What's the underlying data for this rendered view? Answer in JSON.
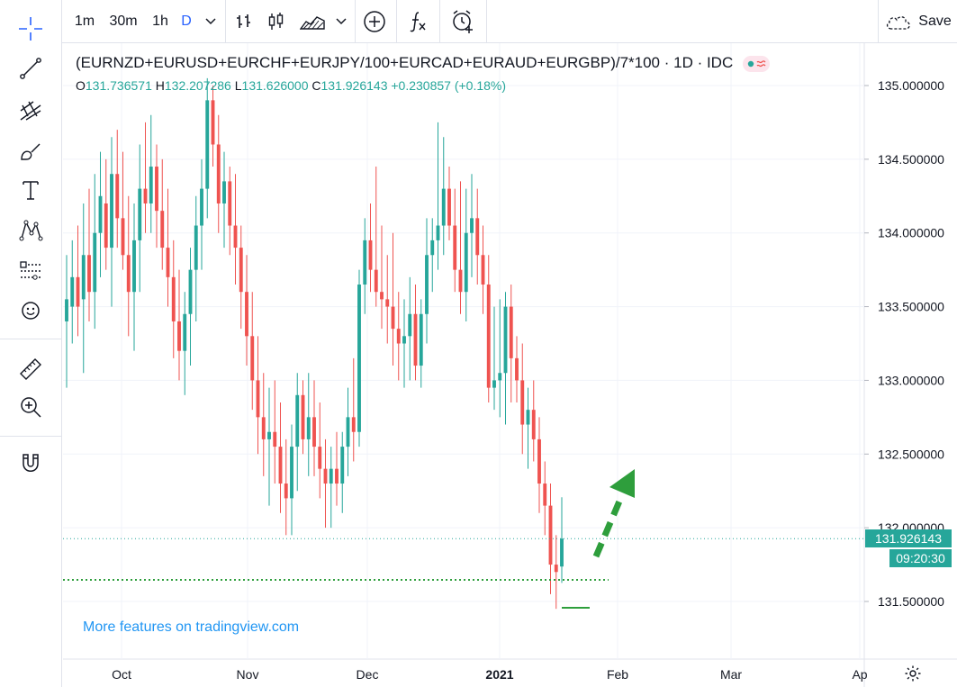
{
  "toolbar": {
    "intervals": [
      "1m",
      "30m",
      "1h",
      "D"
    ],
    "save_label": "Save"
  },
  "legend": {
    "title": "(EURNZD+EURUSD+EURCHF+EURJPY/100+EURCAD+EURAUD+EURGBP)/7*100 · 1D · IDC",
    "o_label": "O",
    "o_value": "131.736571",
    "h_label": "H",
    "h_value": "132.207286",
    "l_label": "L",
    "l_value": "131.626000",
    "c_label": "C",
    "c_value": "131.926143",
    "change": "+0.230857 (+0.18%)"
  },
  "price_tag": {
    "last_price": "131.926143",
    "countdown": "09:20:30"
  },
  "watermark": "More features on tradingview.com",
  "colors": {
    "up": "#26a69a",
    "down": "#ef5350",
    "arrow": "#2e9e3c",
    "accent": "#2962ff"
  },
  "icons": [
    "crosshair-icon",
    "trend-line-icon",
    "pitchfork-icon",
    "brush-icon",
    "text-icon",
    "pattern-icon",
    "forecast-icon",
    "emoji-icon",
    "ruler-icon",
    "zoom-in-icon",
    "magnet-icon",
    "settings-icon",
    "cloud-icon",
    "indicators-icon",
    "alert-icon",
    "compare-icon"
  ],
  "chart_data": {
    "type": "candlestick",
    "title": "(EURNZD+EURUSD+EURCHF+EURJPY/100+EURCAD+EURAUD+EURGBP)/7*100 · 1D · IDC",
    "y_ticks": [
      "135.000000",
      "134.500000",
      "134.000000",
      "133.500000",
      "133.000000",
      "132.500000",
      "132.000000",
      "131.500000"
    ],
    "ylim": [
      131.1,
      135.25
    ],
    "x_ticks": [
      "Oct",
      "Nov",
      "Dec",
      "2021",
      "Feb",
      "Mar",
      "Ap"
    ],
    "grid": true,
    "last_close": 131.926143,
    "candles": [
      {
        "o": 133.4,
        "h": 133.85,
        "l": 132.95,
        "c": 133.55
      },
      {
        "o": 133.5,
        "h": 133.95,
        "l": 133.25,
        "c": 133.7
      },
      {
        "o": 133.7,
        "h": 134.05,
        "l": 133.3,
        "c": 133.5
      },
      {
        "o": 133.55,
        "h": 134.2,
        "l": 133.05,
        "c": 133.85
      },
      {
        "o": 133.85,
        "h": 134.3,
        "l": 133.4,
        "c": 133.6
      },
      {
        "o": 133.6,
        "h": 134.4,
        "l": 133.35,
        "c": 134.0
      },
      {
        "o": 134.0,
        "h": 134.55,
        "l": 133.7,
        "c": 134.25
      },
      {
        "o": 134.2,
        "h": 134.5,
        "l": 133.75,
        "c": 133.9
      },
      {
        "o": 133.9,
        "h": 134.65,
        "l": 133.5,
        "c": 134.4
      },
      {
        "o": 134.4,
        "h": 134.7,
        "l": 133.9,
        "c": 134.1
      },
      {
        "o": 134.1,
        "h": 134.55,
        "l": 133.75,
        "c": 133.85
      },
      {
        "o": 133.85,
        "h": 134.25,
        "l": 133.3,
        "c": 133.6
      },
      {
        "o": 133.6,
        "h": 134.2,
        "l": 133.2,
        "c": 133.95
      },
      {
        "o": 133.95,
        "h": 134.6,
        "l": 133.6,
        "c": 134.3
      },
      {
        "o": 134.3,
        "h": 134.75,
        "l": 134.0,
        "c": 134.2
      },
      {
        "o": 134.2,
        "h": 134.8,
        "l": 134.0,
        "c": 134.45
      },
      {
        "o": 134.45,
        "h": 134.6,
        "l": 133.9,
        "c": 134.15
      },
      {
        "o": 134.15,
        "h": 134.5,
        "l": 133.75,
        "c": 133.9
      },
      {
        "o": 133.9,
        "h": 134.3,
        "l": 133.5,
        "c": 133.7
      },
      {
        "o": 133.7,
        "h": 133.95,
        "l": 133.15,
        "c": 133.4
      },
      {
        "o": 133.4,
        "h": 133.75,
        "l": 133.0,
        "c": 133.2
      },
      {
        "o": 133.2,
        "h": 133.6,
        "l": 132.9,
        "c": 133.45
      },
      {
        "o": 133.45,
        "h": 133.9,
        "l": 133.1,
        "c": 133.75
      },
      {
        "o": 133.75,
        "h": 134.25,
        "l": 133.4,
        "c": 134.05
      },
      {
        "o": 134.05,
        "h": 134.5,
        "l": 133.75,
        "c": 134.3
      },
      {
        "o": 134.3,
        "h": 135.05,
        "l": 134.1,
        "c": 134.9
      },
      {
        "o": 134.9,
        "h": 135.0,
        "l": 134.45,
        "c": 134.6
      },
      {
        "o": 134.6,
        "h": 134.8,
        "l": 134.0,
        "c": 134.2
      },
      {
        "o": 134.2,
        "h": 134.55,
        "l": 133.9,
        "c": 134.35
      },
      {
        "o": 134.35,
        "h": 134.45,
        "l": 133.85,
        "c": 134.05
      },
      {
        "o": 134.05,
        "h": 134.4,
        "l": 133.65,
        "c": 133.9
      },
      {
        "o": 133.9,
        "h": 134.05,
        "l": 133.35,
        "c": 133.6
      },
      {
        "o": 133.6,
        "h": 133.85,
        "l": 133.1,
        "c": 133.3
      },
      {
        "o": 133.3,
        "h": 133.6,
        "l": 132.8,
        "c": 133.0
      },
      {
        "o": 133.0,
        "h": 133.3,
        "l": 132.5,
        "c": 132.75
      },
      {
        "o": 132.75,
        "h": 133.05,
        "l": 132.35,
        "c": 132.6
      },
      {
        "o": 132.6,
        "h": 132.95,
        "l": 132.15,
        "c": 132.65
      },
      {
        "o": 132.65,
        "h": 133.0,
        "l": 132.3,
        "c": 132.55
      },
      {
        "o": 132.55,
        "h": 132.85,
        "l": 132.1,
        "c": 132.3
      },
      {
        "o": 132.3,
        "h": 132.6,
        "l": 131.95,
        "c": 132.2
      },
      {
        "o": 132.2,
        "h": 132.7,
        "l": 131.95,
        "c": 132.55
      },
      {
        "o": 132.55,
        "h": 133.05,
        "l": 132.25,
        "c": 132.9
      },
      {
        "o": 132.9,
        "h": 133.0,
        "l": 132.5,
        "c": 132.6
      },
      {
        "o": 132.6,
        "h": 133.05,
        "l": 132.35,
        "c": 132.75
      },
      {
        "o": 132.75,
        "h": 133.0,
        "l": 132.35,
        "c": 132.55
      },
      {
        "o": 132.55,
        "h": 132.85,
        "l": 132.2,
        "c": 132.4
      },
      {
        "o": 132.4,
        "h": 132.6,
        "l": 132.0,
        "c": 132.3
      },
      {
        "o": 132.3,
        "h": 132.55,
        "l": 132.0,
        "c": 132.4
      },
      {
        "o": 132.4,
        "h": 132.65,
        "l": 132.15,
        "c": 132.3
      },
      {
        "o": 132.3,
        "h": 132.65,
        "l": 132.1,
        "c": 132.55
      },
      {
        "o": 132.55,
        "h": 132.95,
        "l": 132.35,
        "c": 132.75
      },
      {
        "o": 132.75,
        "h": 133.15,
        "l": 132.45,
        "c": 132.65
      },
      {
        "o": 132.65,
        "h": 133.75,
        "l": 132.55,
        "c": 133.65
      },
      {
        "o": 133.65,
        "h": 134.1,
        "l": 133.45,
        "c": 133.95
      },
      {
        "o": 133.95,
        "h": 134.2,
        "l": 133.6,
        "c": 133.75
      },
      {
        "o": 133.75,
        "h": 134.45,
        "l": 133.5,
        "c": 133.6
      },
      {
        "o": 133.6,
        "h": 134.05,
        "l": 133.35,
        "c": 133.55
      },
      {
        "o": 133.55,
        "h": 133.85,
        "l": 133.25,
        "c": 133.5
      },
      {
        "o": 133.5,
        "h": 134.0,
        "l": 133.1,
        "c": 133.35
      },
      {
        "o": 133.35,
        "h": 133.6,
        "l": 133.0,
        "c": 133.25
      },
      {
        "o": 133.25,
        "h": 133.55,
        "l": 132.95,
        "c": 133.3
      },
      {
        "o": 133.3,
        "h": 133.7,
        "l": 133.0,
        "c": 133.45
      },
      {
        "o": 133.45,
        "h": 133.65,
        "l": 133.0,
        "c": 133.1
      },
      {
        "o": 133.1,
        "h": 133.55,
        "l": 132.95,
        "c": 133.45
      },
      {
        "o": 133.45,
        "h": 134.1,
        "l": 133.25,
        "c": 133.85
      },
      {
        "o": 133.85,
        "h": 134.1,
        "l": 133.6,
        "c": 133.95
      },
      {
        "o": 133.95,
        "h": 134.75,
        "l": 133.75,
        "c": 134.05
      },
      {
        "o": 134.05,
        "h": 134.65,
        "l": 133.85,
        "c": 134.3
      },
      {
        "o": 134.3,
        "h": 134.45,
        "l": 133.95,
        "c": 134.05
      },
      {
        "o": 134.05,
        "h": 134.3,
        "l": 133.6,
        "c": 133.75
      },
      {
        "o": 133.75,
        "h": 134.35,
        "l": 133.45,
        "c": 133.6
      },
      {
        "o": 133.6,
        "h": 134.3,
        "l": 133.4,
        "c": 134.0
      },
      {
        "o": 134.0,
        "h": 134.4,
        "l": 133.7,
        "c": 134.1
      },
      {
        "o": 134.1,
        "h": 134.3,
        "l": 133.65,
        "c": 133.85
      },
      {
        "o": 133.85,
        "h": 134.05,
        "l": 133.45,
        "c": 133.65
      },
      {
        "o": 133.65,
        "h": 133.85,
        "l": 132.85,
        "c": 132.95
      },
      {
        "o": 132.95,
        "h": 133.5,
        "l": 132.8,
        "c": 133.0
      },
      {
        "o": 133.0,
        "h": 133.55,
        "l": 132.75,
        "c": 133.05
      },
      {
        "o": 133.05,
        "h": 133.6,
        "l": 132.7,
        "c": 133.5
      },
      {
        "o": 133.5,
        "h": 133.65,
        "l": 132.85,
        "c": 133.15
      },
      {
        "o": 133.15,
        "h": 133.3,
        "l": 132.85,
        "c": 133.0
      },
      {
        "o": 133.0,
        "h": 133.25,
        "l": 132.5,
        "c": 132.7
      },
      {
        "o": 132.7,
        "h": 132.95,
        "l": 132.4,
        "c": 132.8
      },
      {
        "o": 132.8,
        "h": 133.0,
        "l": 132.45,
        "c": 132.6
      },
      {
        "o": 132.6,
        "h": 132.75,
        "l": 132.1,
        "c": 132.3
      },
      {
        "o": 132.3,
        "h": 132.45,
        "l": 131.95,
        "c": 132.15
      },
      {
        "o": 132.15,
        "h": 132.3,
        "l": 131.55,
        "c": 131.75
      },
      {
        "o": 131.75,
        "h": 131.95,
        "l": 131.45,
        "c": 131.7
      },
      {
        "o": 131.737,
        "h": 132.207,
        "l": 131.626,
        "c": 131.926
      }
    ]
  }
}
